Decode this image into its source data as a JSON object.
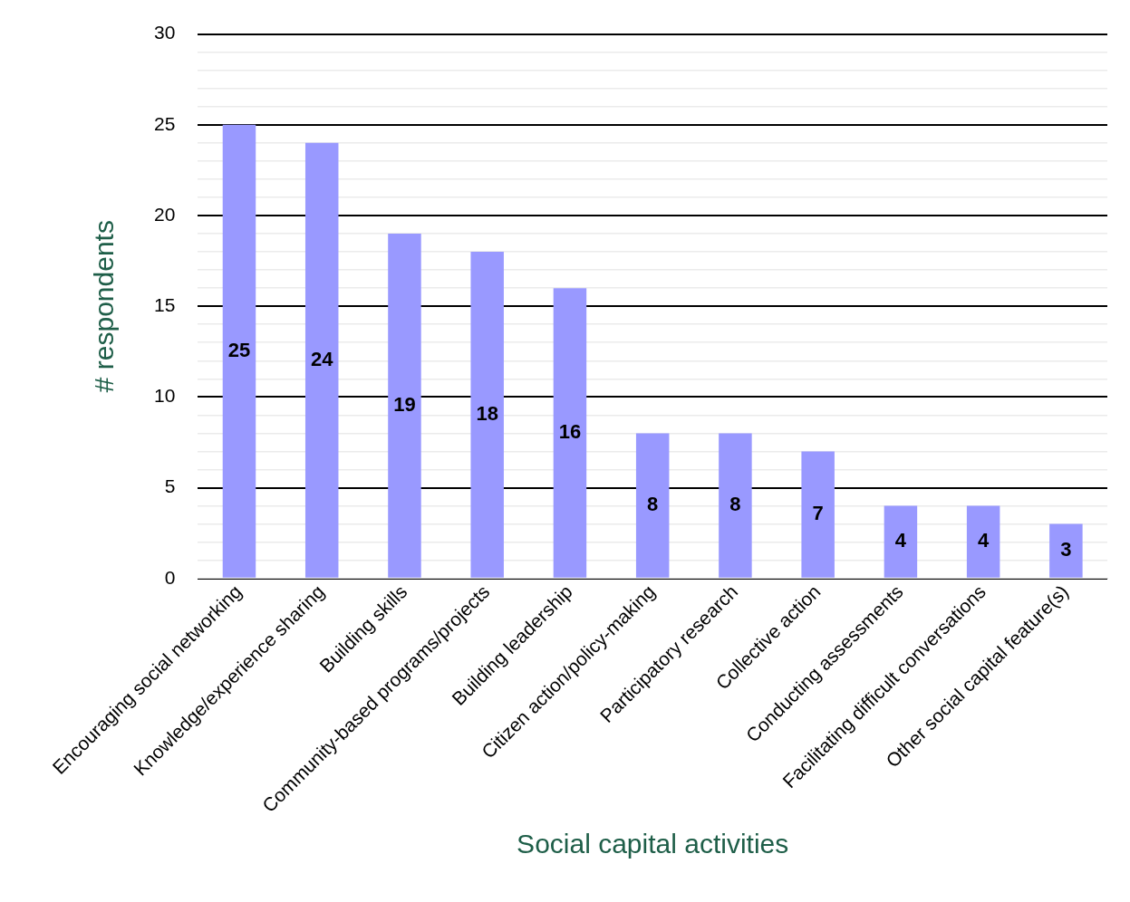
{
  "chart_data": {
    "type": "bar",
    "xlabel": "Social capital activities",
    "ylabel": "# respondents",
    "categories": [
      "Encouraging social networking",
      "Knowledge/experience sharing",
      "Building skills",
      "Community-based programs/projects",
      "Building leadership",
      "Citizen action/policy-making",
      "Participatory research",
      "Collective action",
      "Conducting assessments",
      "Facilitating difficult conversations",
      "Other social capital feature(s)"
    ],
    "values": [
      25,
      24,
      19,
      18,
      16,
      8,
      8,
      7,
      4,
      4,
      3
    ],
    "color": "#9999ff",
    "data_labels": true,
    "grid": "y",
    "legend": false,
    "ylim": [
      0,
      30
    ],
    "yticks": [
      0,
      {
        "value": 1,
        "label": null
      },
      {
        "value": 2,
        "label": null
      },
      {
        "value": 3,
        "label": null
      },
      {
        "value": 4,
        "label": null
      },
      5,
      {
        "value": 6,
        "label": null
      },
      {
        "value": 7,
        "label": null
      },
      {
        "value": 8,
        "label": null
      },
      {
        "value": 9,
        "label": null
      },
      10,
      {
        "value": 11,
        "label": null
      },
      {
        "value": 12,
        "label": null
      },
      {
        "value": 13,
        "label": null
      },
      {
        "value": 14,
        "label": null
      },
      15,
      {
        "value": 16,
        "label": null
      },
      {
        "value": 17,
        "label": null
      },
      {
        "value": 18,
        "label": null
      },
      {
        "value": 19,
        "label": null
      },
      20,
      {
        "value": 21,
        "label": null
      },
      {
        "value": 22,
        "label": null
      },
      {
        "value": 23,
        "label": null
      },
      {
        "value": 24,
        "label": null
      },
      25,
      {
        "value": 26,
        "label": null
      },
      {
        "value": 27,
        "label": null
      },
      {
        "value": 28,
        "label": null
      },
      {
        "value": 29,
        "label": null
      },
      30
    ]
  }
}
